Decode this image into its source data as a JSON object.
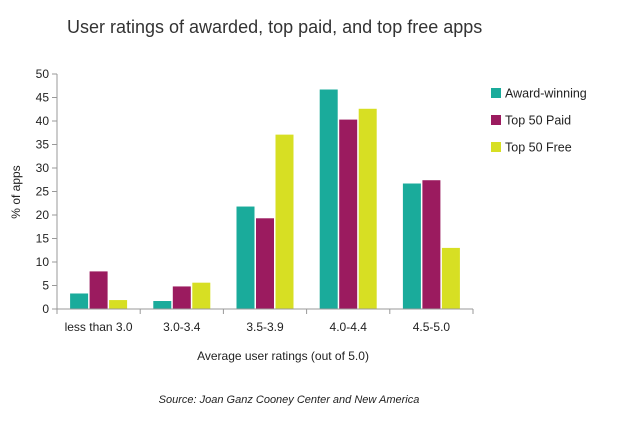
{
  "chart_data": {
    "type": "bar",
    "title": "User ratings of awarded, top paid, and top free apps",
    "xlabel": "Average user ratings (out of 5.0)",
    "ylabel": "% of apps",
    "ylim": [
      0,
      50
    ],
    "yticks": [
      0,
      5,
      10,
      15,
      20,
      25,
      30,
      35,
      40,
      45,
      50
    ],
    "categories": [
      "less than 3.0",
      "3.0-3.4",
      "3.5-3.9",
      "4.0-4.4",
      "4.5-5.0"
    ],
    "series": [
      {
        "name": "Award-winning",
        "color": "#1aab9b",
        "values": [
          3.3,
          1.7,
          21.8,
          46.7,
          26.7
        ]
      },
      {
        "name": "Top 50 Paid",
        "color": "#9b1b5f",
        "values": [
          8.0,
          4.8,
          19.3,
          40.3,
          27.4
        ]
      },
      {
        "name": "Top 50 Free",
        "color": "#d7df23",
        "values": [
          1.9,
          5.6,
          37.1,
          42.6,
          13.0
        ]
      }
    ],
    "legend_position": "right",
    "grid": false,
    "source": "Source: Joan Ganz Cooney Center and New America"
  }
}
